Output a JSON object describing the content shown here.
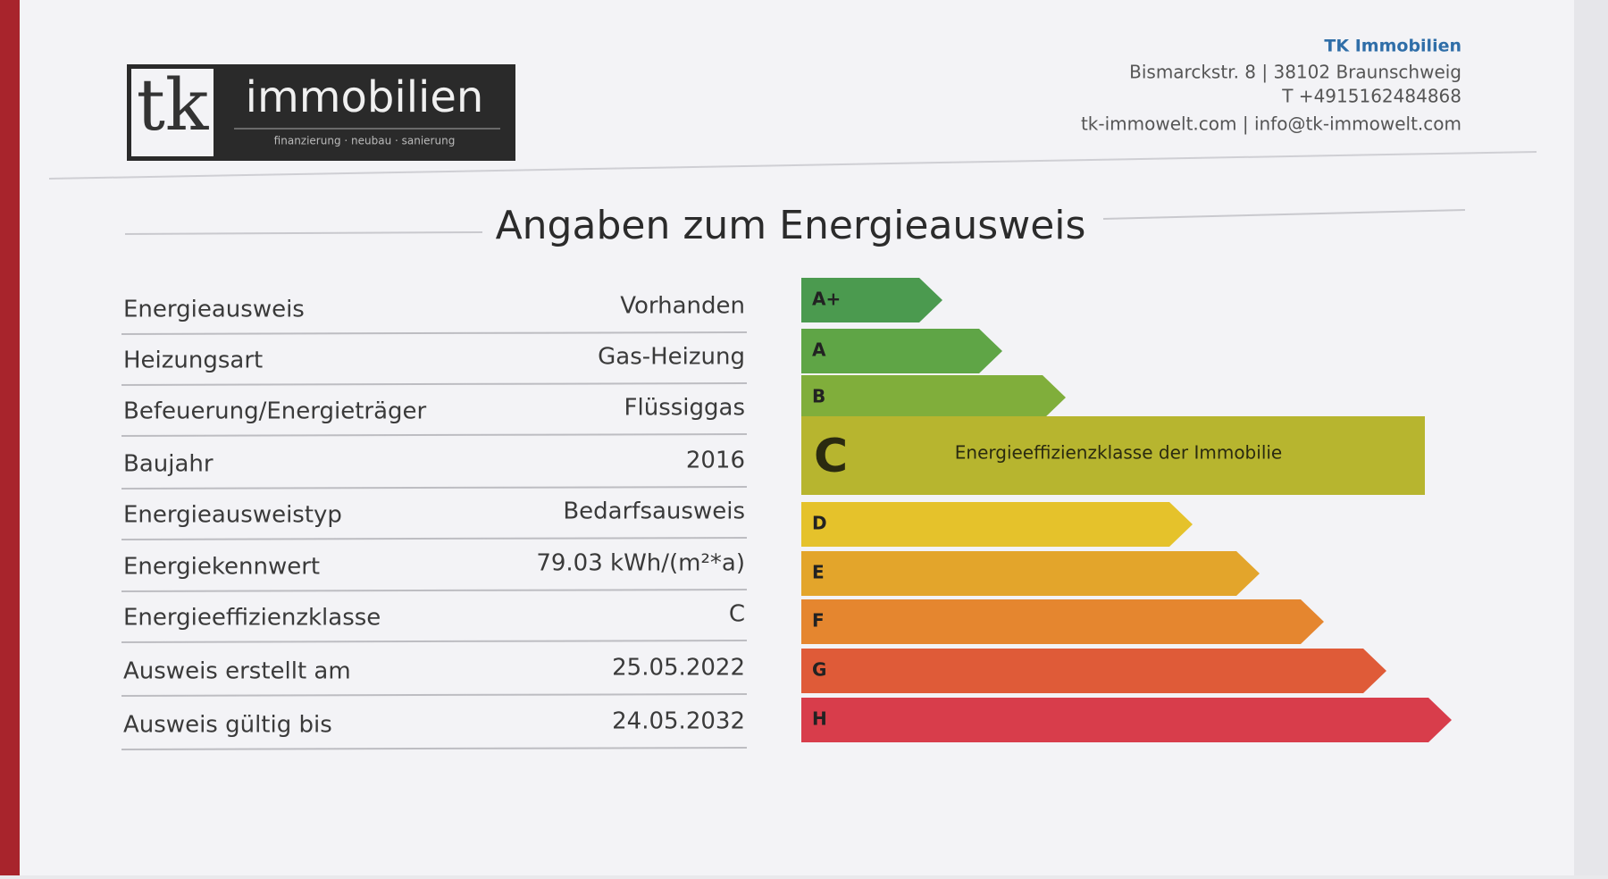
{
  "header": {
    "logo": {
      "mark": "tk",
      "name": "immobilien",
      "tagline": "finanzierung · neubau · sanierung"
    },
    "contact": {
      "company": "TK Immobilien",
      "address": "Bismarckstr. 8 | 38102 Braunschweig",
      "phone": "T +4915162484868",
      "web": "tk-immowelt.com | info@tk-immowelt.com"
    }
  },
  "title": "Angaben zum Energieausweis",
  "table": {
    "rows": [
      [
        "Energieausweis",
        "Vorhanden"
      ],
      [
        "Heizungsart",
        "Gas-Heizung"
      ],
      [
        "Befeuerung/Energieträger",
        "Flüssiggas"
      ],
      [
        "Baujahr",
        "2016"
      ],
      [
        "Energieausweistyp",
        "Bedarfsausweis"
      ],
      [
        "Energiekennwert",
        "79.03 kWh/(m²*a)"
      ],
      [
        "Energieeffizienzklasse",
        "C"
      ],
      [
        "Ausweis erstellt am",
        "25.05.2022"
      ],
      [
        "Ausweis gültig bis",
        "24.05.2032"
      ]
    ]
  },
  "energy_scale": {
    "classes": [
      {
        "label": "A+"
      },
      {
        "label": "A"
      },
      {
        "label": "B"
      },
      {
        "label": "C",
        "note": "Energieeffizienzklasse der Immobilie"
      },
      {
        "label": "D"
      },
      {
        "label": "E"
      },
      {
        "label": "F"
      },
      {
        "label": "G"
      },
      {
        "label": "H"
      }
    ]
  }
}
